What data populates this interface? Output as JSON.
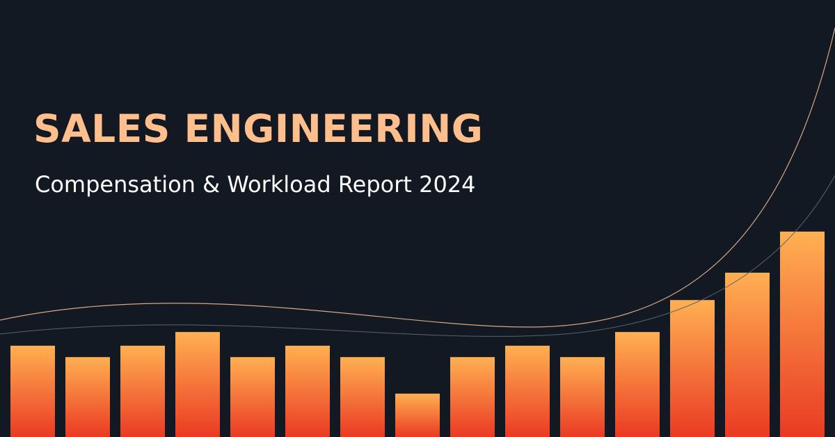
{
  "banner": {
    "title": "SALES ENGINEERING",
    "subtitle": "Compensation & Workload Report 2024"
  },
  "colors": {
    "background": "#121923",
    "title": "#ffbf8c",
    "subtitle": "#ffffff",
    "bar_top": "#ffb052",
    "bar_bottom": "#ea3a23",
    "curve_primary": "#d9a782",
    "curve_secondary": "#5a6470"
  },
  "decorative_bars": {
    "levels": [
      0.4,
      0.35,
      0.4,
      0.46,
      0.35,
      0.4,
      0.35,
      0.19,
      0.35,
      0.4,
      0.35,
      0.46,
      0.6,
      0.72,
      0.9
    ]
  }
}
